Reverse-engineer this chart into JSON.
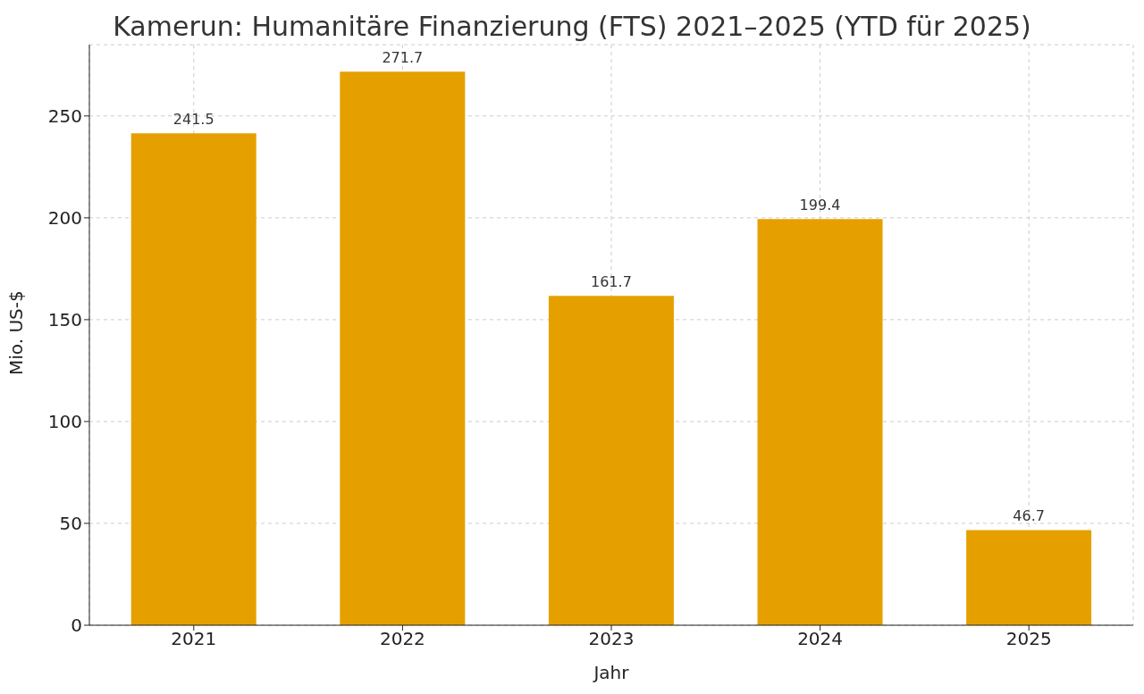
{
  "chart_data": {
    "type": "bar",
    "title": "Kamerun: Humanitäre Finanzierung (FTS) 2021–2025 (YTD für 2025)",
    "xlabel": "Jahr",
    "ylabel": "Mio. US-$",
    "categories": [
      "2021",
      "2022",
      "2023",
      "2024",
      "2025"
    ],
    "values": [
      241.5,
      271.7,
      161.7,
      199.4,
      46.7
    ],
    "color": "#e5a000",
    "ylim": [
      0,
      285
    ],
    "yticks": [
      0,
      50,
      100,
      150,
      200,
      250
    ],
    "grid": true,
    "data_labels": true
  }
}
